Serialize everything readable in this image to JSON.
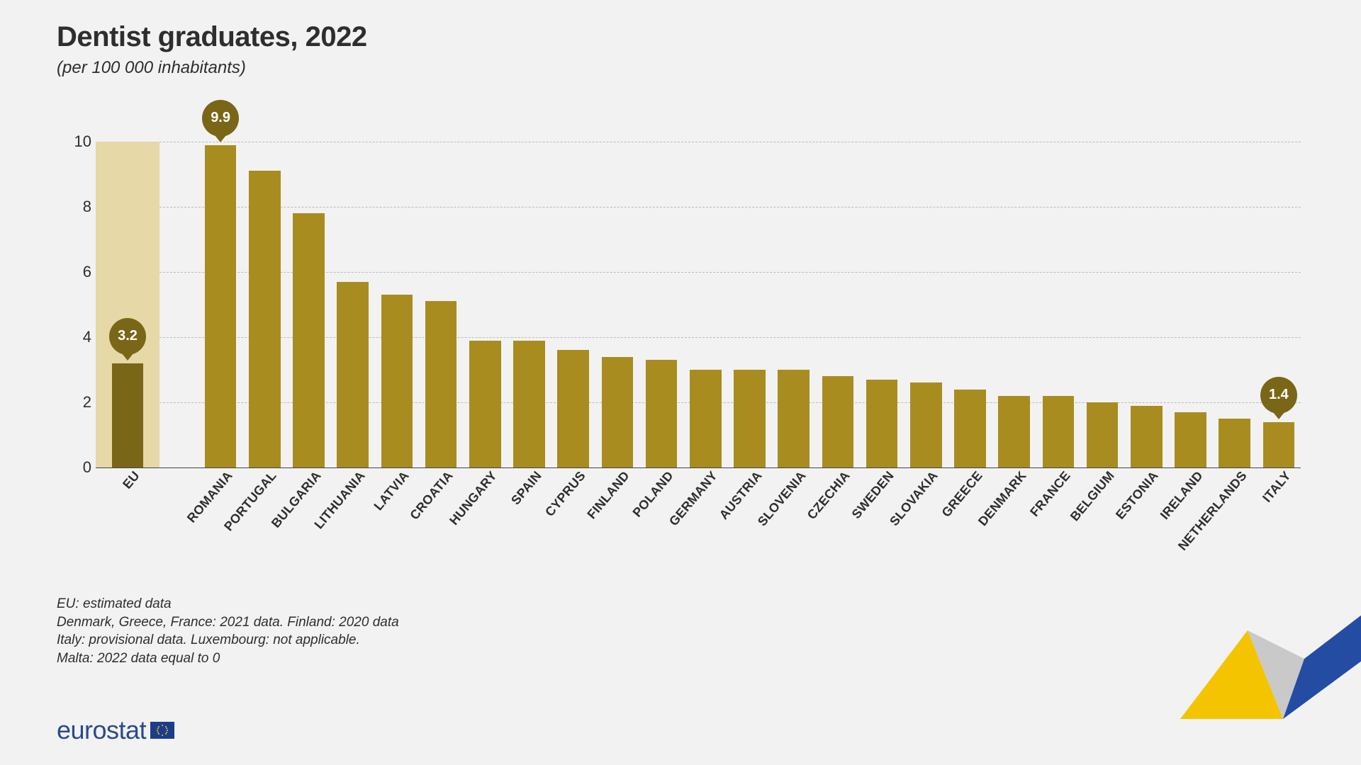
{
  "title": "Dentist graduates, 2022",
  "subtitle": "(per 100 000 inhabitants)",
  "chart": {
    "type": "bar",
    "ylim": [
      0,
      10
    ],
    "ytick_step": 2,
    "y_ticks": [
      0,
      2,
      4,
      6,
      8,
      10
    ],
    "background_color": "#f2f2f2",
    "grid_color": "#bbbbbb",
    "grid_style": "dashed",
    "axis_color": "#444444",
    "bar_color": "#a88c1f",
    "eu_bar_color": "#7a6617",
    "eu_back_color": "#e6d8a7",
    "bubble_color": "#7a6617",
    "bar_width_ratio": 0.72,
    "tick_fontsize": 22,
    "xlabel_fontsize": 18,
    "eu": {
      "label": "EU",
      "value": 3.2,
      "backdrop": 10
    },
    "countries": [
      {
        "label": "ROMANIA",
        "value": 9.9,
        "highlight": "9.9"
      },
      {
        "label": "PORTUGAL",
        "value": 9.1
      },
      {
        "label": "BULGARIA",
        "value": 7.8
      },
      {
        "label": "LITHUANIA",
        "value": 5.7
      },
      {
        "label": "LATVIA",
        "value": 5.3
      },
      {
        "label": "CROATIA",
        "value": 5.1
      },
      {
        "label": "HUNGARY",
        "value": 3.9
      },
      {
        "label": "SPAIN",
        "value": 3.9
      },
      {
        "label": "CYPRUS",
        "value": 3.6
      },
      {
        "label": "FINLAND",
        "value": 3.4
      },
      {
        "label": "POLAND",
        "value": 3.3
      },
      {
        "label": "GERMANY",
        "value": 3.0
      },
      {
        "label": "AUSTRIA",
        "value": 3.0
      },
      {
        "label": "SLOVENIA",
        "value": 3.0
      },
      {
        "label": "CZECHIA",
        "value": 2.8
      },
      {
        "label": "SWEDEN",
        "value": 2.7
      },
      {
        "label": "SLOVAKIA",
        "value": 2.6
      },
      {
        "label": "GREECE",
        "value": 2.4
      },
      {
        "label": "DENMARK",
        "value": 2.2
      },
      {
        "label": "FRANCE",
        "value": 2.2
      },
      {
        "label": "BELGIUM",
        "value": 2.0
      },
      {
        "label": "ESTONIA",
        "value": 1.9
      },
      {
        "label": "IRELAND",
        "value": 1.7
      },
      {
        "label": "NETHERLANDS",
        "value": 1.5
      },
      {
        "label": "ITALY",
        "value": 1.4,
        "highlight": "1.4"
      }
    ],
    "eu_bubble_label": "3.2"
  },
  "footnotes": [
    "EU: estimated data",
    "Denmark, Greece, France: 2021 data. Finland: 2020 data",
    "Italy: provisional data. Luxembourg: not applicable.",
    "Malta: 2022 data equal to 0"
  ],
  "logo": {
    "text": "eurostat",
    "brand_color": "#2b4a8b",
    "flag_bg": "#1b3e8c",
    "flag_star": "#f7c600"
  },
  "swoosh": {
    "yellow": "#f4c400",
    "grey": "#c9c9c9",
    "blue": "#244ca3"
  }
}
